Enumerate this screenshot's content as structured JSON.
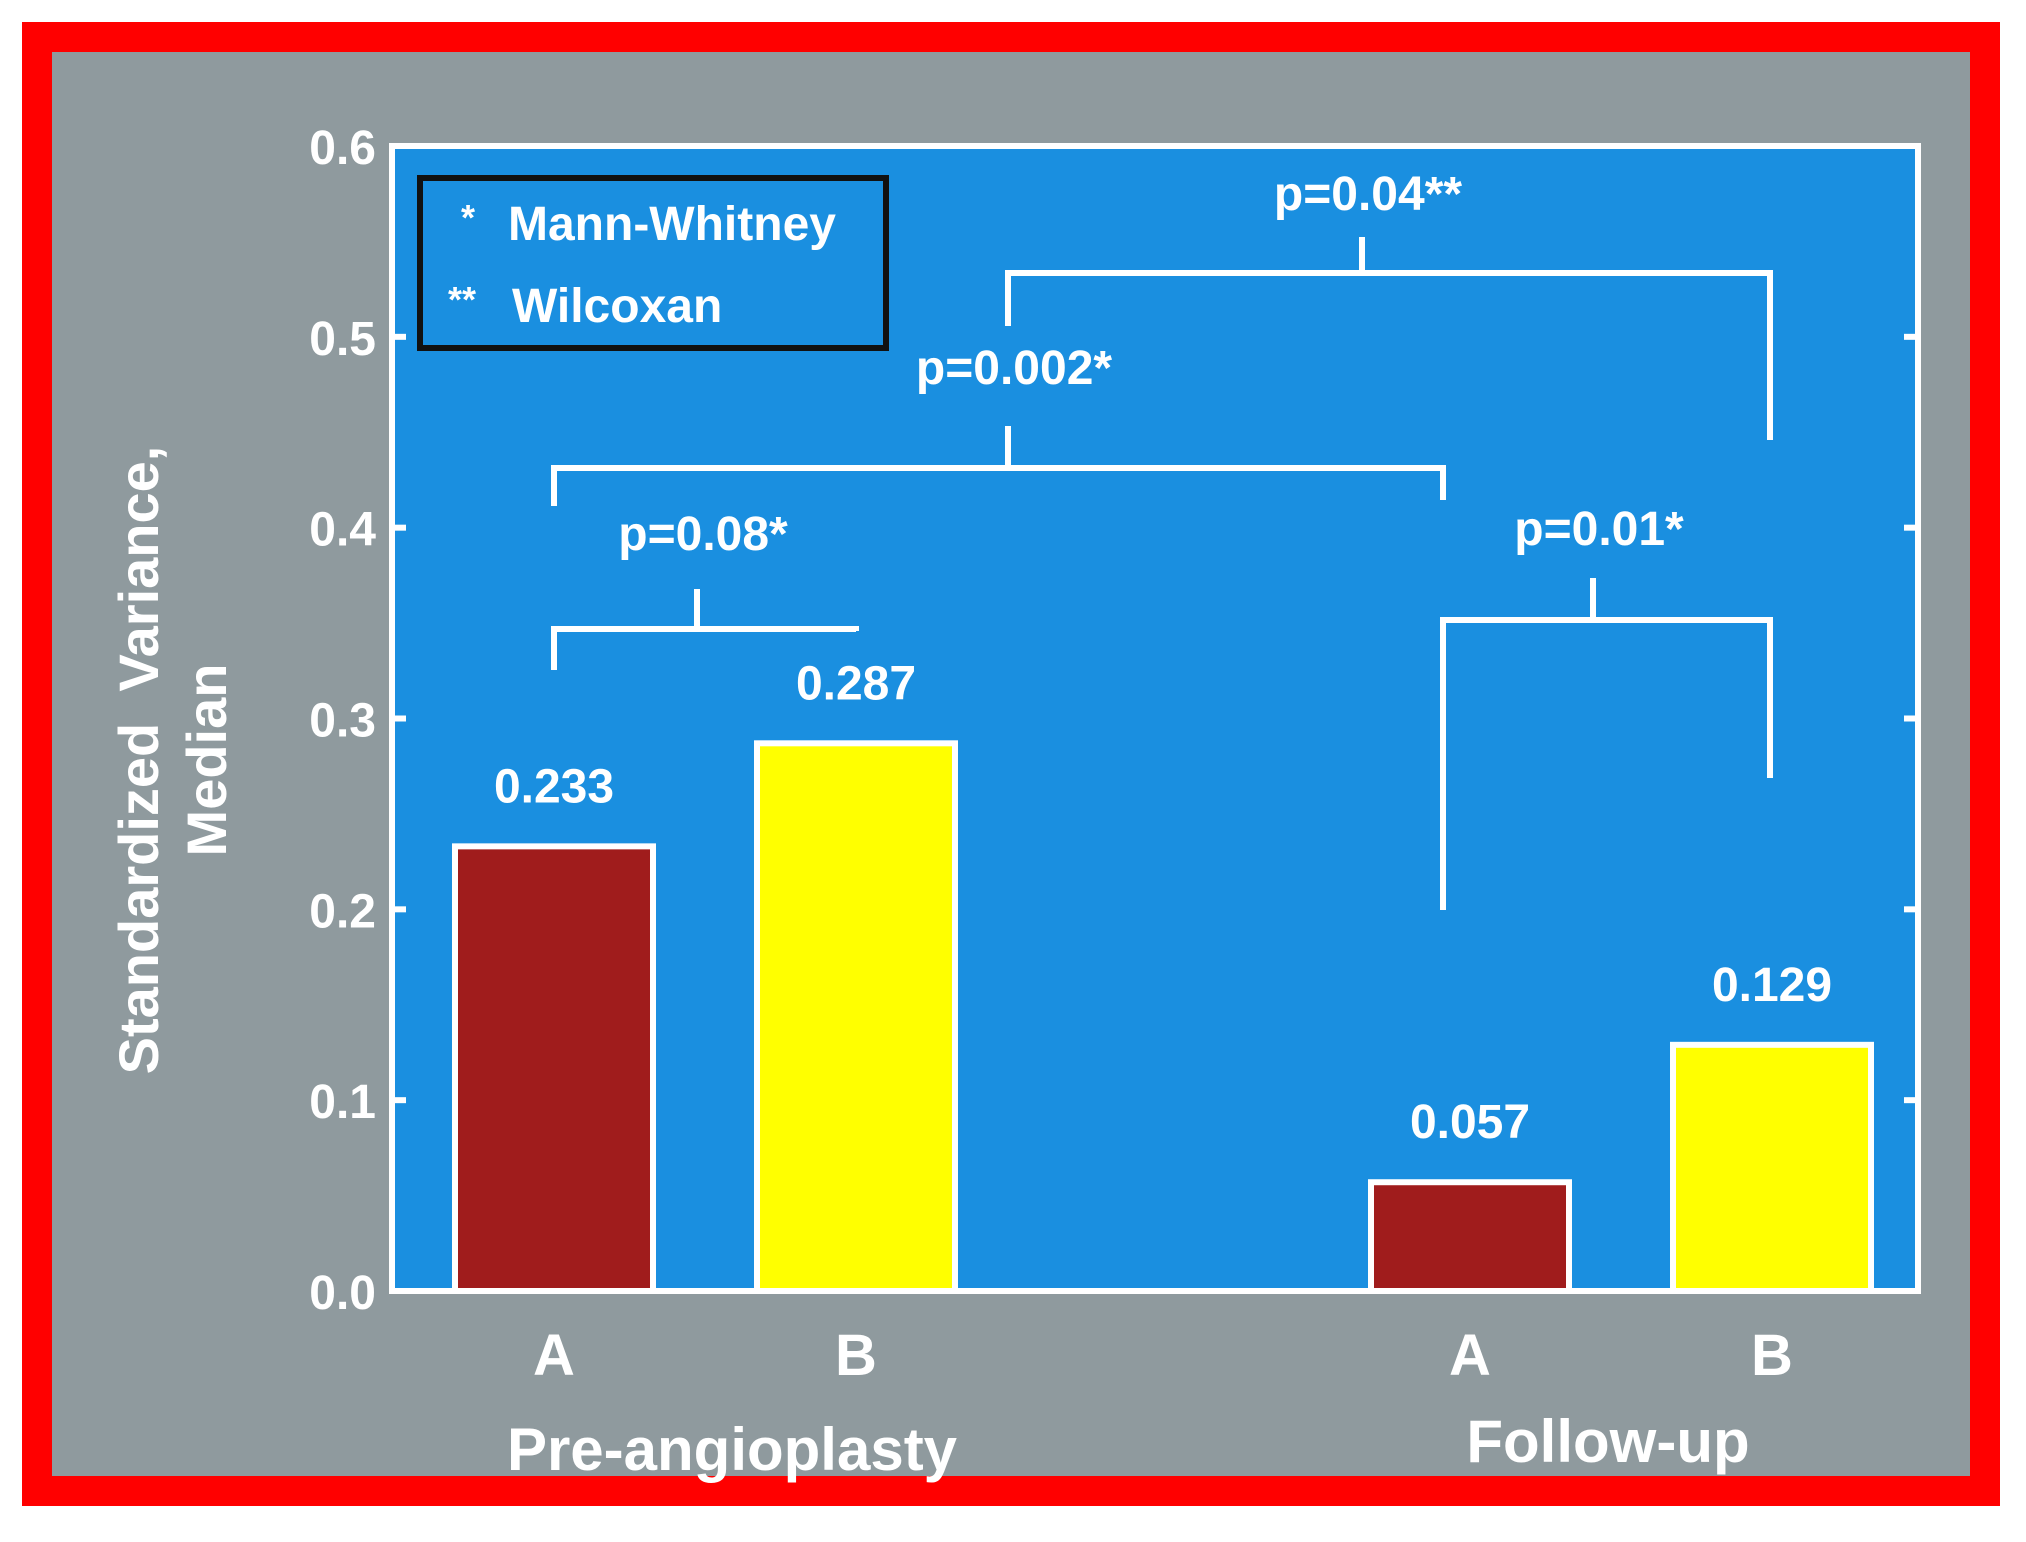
{
  "chart_data": {
    "type": "bar",
    "ylabel": "Standardized Variance, Median",
    "ylabel_lines": [
      "Standardized  Variance,",
      "Median"
    ],
    "ylim": [
      0,
      0.6
    ],
    "y_ticks": [
      "0.0",
      "0.1",
      "0.2",
      "0.3",
      "0.4",
      "0.5",
      "0.6"
    ],
    "groups": [
      {
        "label": "Pre-angioplasty",
        "bars": [
          {
            "category": "A",
            "value": 0.233,
            "value_label": "0.233"
          },
          {
            "category": "B",
            "value": 0.287,
            "value_label": "0.287"
          }
        ]
      },
      {
        "label": "Follow-up",
        "bars": [
          {
            "category": "A",
            "value": 0.057,
            "value_label": "0.057"
          },
          {
            "category": "B",
            "value": 0.129,
            "value_label": "0.129"
          }
        ]
      }
    ],
    "legend": {
      "placement": "top-left",
      "entries": [
        {
          "symbol": "*",
          "label": "Mann-Whitney"
        },
        {
          "symbol": "**",
          "label": "Wilcoxan"
        }
      ]
    },
    "annotations": [
      {
        "text": "p=0.08*",
        "compares": [
          "Pre-angioplasty A",
          "Pre-angioplasty B"
        ]
      },
      {
        "text": "p=0.002*",
        "compares": [
          "Pre-angioplasty A",
          "Follow-up A"
        ]
      },
      {
        "text": "p=0.04**",
        "compares": [
          "Pre-angioplasty",
          "Follow-up B"
        ]
      },
      {
        "text": "p=0.01*",
        "compares": [
          "Follow-up A",
          "Follow-up B"
        ]
      }
    ],
    "grid": false
  },
  "colors": {
    "border": "#ff0000",
    "slide_background": "#8f9a9e",
    "plot_background": "#1a8fe0",
    "category_A": "#a01c1c",
    "category_B": "#ffff00",
    "text": "#ffffff",
    "legend_border": "#111111"
  }
}
